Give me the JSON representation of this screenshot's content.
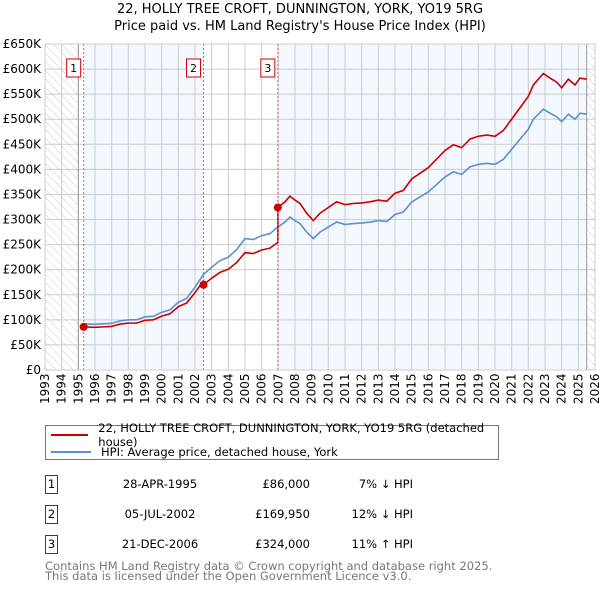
{
  "chart_data": {
    "type": "line",
    "title": "22, HOLLY TREE CROFT, DUNNINGTON, YORK, YO19 5RG",
    "subtitle": "Price paid vs. HM Land Registry's House Price Index (HPI)",
    "xlim": [
      1993,
      2026
    ],
    "ylim": [
      0,
      650000
    ],
    "y_ticks": [
      0,
      50000,
      100000,
      150000,
      200000,
      250000,
      300000,
      350000,
      400000,
      450000,
      500000,
      550000,
      600000,
      650000
    ],
    "y_tick_labels": [
      "£0",
      "£50K",
      "£100K",
      "£150K",
      "£200K",
      "£250K",
      "£300K",
      "£350K",
      "£400K",
      "£450K",
      "£500K",
      "£550K",
      "£600K",
      "£650K"
    ],
    "x_tick_labels": [
      "1993",
      "1994",
      "1995",
      "1996",
      "1997",
      "1998",
      "1999",
      "2000",
      "2001",
      "2002",
      "2003",
      "2004",
      "2005",
      "2006",
      "2007",
      "2008",
      "2009",
      "2010",
      "2011",
      "2012",
      "2013",
      "2014",
      "2015",
      "2016",
      "2017",
      "2018",
      "2019",
      "2020",
      "2021",
      "2022",
      "2023",
      "2024",
      "2025",
      "2026"
    ],
    "grid": true,
    "colors": {
      "price": "#cc0000",
      "hpi": "#5b8fd4",
      "band": "#f3f7fe"
    },
    "series": [
      {
        "name": "HPI: Average price, detached house, York",
        "x": [
          1995.32,
          1996,
          1996.5,
          1997,
          1997.5,
          1998,
          1998.5,
          1999,
          1999.5,
          2000,
          2000.5,
          2001,
          2001.5,
          2002,
          2002.5,
          2003,
          2003.5,
          2004,
          2004.5,
          2005,
          2005.5,
          2006,
          2006.5,
          2006.97,
          2007.4,
          2007.7,
          2008,
          2008.3,
          2008.7,
          2009.1,
          2009.5,
          2010,
          2010.5,
          2011,
          2011.5,
          2012,
          2012.5,
          2013,
          2013.5,
          2014,
          2014.5,
          2015,
          2015.5,
          2016,
          2016.5,
          2017,
          2017.5,
          2018,
          2018.5,
          2019,
          2019.5,
          2020,
          2020.5,
          2021,
          2021.5,
          2022,
          2022.3,
          2022.6,
          2022.9,
          2023.3,
          2023.7,
          2024,
          2024.4,
          2024.8,
          2025.1,
          2025.5
        ],
        "values": [
          92000,
          91000,
          92000,
          93000,
          98000,
          100000,
          100000,
          106000,
          107000,
          115000,
          120000,
          135000,
          143000,
          165000,
          190000,
          205000,
          218000,
          225000,
          240000,
          262000,
          260000,
          268000,
          272000,
          285000,
          295000,
          305000,
          298000,
          292000,
          275000,
          262000,
          275000,
          285000,
          295000,
          290000,
          292000,
          293000,
          295000,
          298000,
          296000,
          310000,
          315000,
          335000,
          345000,
          355000,
          370000,
          385000,
          395000,
          390000,
          405000,
          410000,
          412000,
          410000,
          420000,
          440000,
          460000,
          480000,
          500000,
          510000,
          520000,
          512000,
          505000,
          495000,
          510000,
          500000,
          512000,
          510000
        ]
      },
      {
        "name": "22, HOLLY TREE CROFT, DUNNINGTON, YORK, YO19 5RG (detached house)",
        "derived_from_hpi_at_sales": true
      }
    ],
    "sales": [
      {
        "num": "1",
        "year": 1995.32,
        "value": 86000,
        "date": "28-APR-1995",
        "price": "£86,000",
        "hpi": "7% ↓ HPI"
      },
      {
        "num": "2",
        "year": 2002.51,
        "value": 169950,
        "date": "05-JUL-2002",
        "price": "£169,950",
        "hpi": "12% ↓ HPI"
      },
      {
        "num": "3",
        "year": 2006.97,
        "value": 324000,
        "date": "21-DEC-2006",
        "price": "£324,000",
        "hpi": "11% ↑ HPI"
      }
    ],
    "data_end_year": 2025.5
  },
  "legend": {
    "price_label": "22, HOLLY TREE CROFT, DUNNINGTON, YORK, YO19 5RG (detached house)",
    "hpi_label": "HPI: Average price, detached house, York"
  },
  "footer": {
    "line1": "Contains HM Land Registry data © Crown copyright and database right 2025.",
    "line2": "This data is licensed under the Open Government Licence v3.0."
  }
}
